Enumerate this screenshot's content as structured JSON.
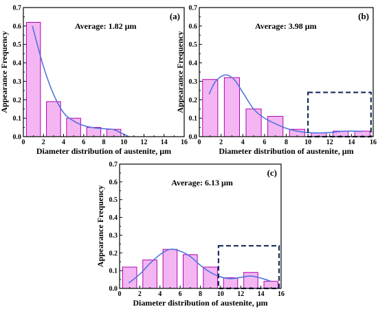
{
  "colors": {
    "bar_fill": "#f4b6f2",
    "bar_stroke": "#b000b0",
    "curve": "#4f73e0",
    "dash_box": "#1a2a5a",
    "axis": "#000000"
  },
  "chart_data": [
    {
      "type": "bar",
      "panel_label": "(a)",
      "annotation": "Average: 1.82 µm",
      "xlabel": "Diameter distribution of austenite, µm",
      "ylabel": "Appearance Frequency",
      "xlim": [
        0,
        16
      ],
      "ylim": [
        0,
        0.7
      ],
      "xticks": [
        "0",
        "2",
        "4",
        "6",
        "8",
        "10",
        "12",
        "14",
        "16"
      ],
      "yticks": [
        "0.0",
        "0.1",
        "0.2",
        "0.3",
        "0.4",
        "0.5",
        "0.6",
        "0.7"
      ],
      "x": [
        1,
        3,
        5,
        7,
        9
      ],
      "values": [
        0.62,
        0.19,
        0.1,
        0.05,
        0.04
      ],
      "bar_width": 1.4,
      "fit_curve": [
        [
          0.9,
          0.6
        ],
        [
          2,
          0.38
        ],
        [
          3,
          0.23
        ],
        [
          4,
          0.13
        ],
        [
          5,
          0.085
        ],
        [
          6,
          0.06
        ],
        [
          7,
          0.048
        ],
        [
          8,
          0.043
        ],
        [
          9,
          0.038
        ],
        [
          9.8,
          0.018
        ],
        [
          10.5,
          0.0
        ]
      ],
      "highlight_box": null
    },
    {
      "type": "bar",
      "panel_label": "(b)",
      "annotation": "Average: 3.98 µm",
      "xlabel": "Diameter distribution of austenite, µm",
      "ylabel": "Appearance Frequency",
      "xlim": [
        0,
        16
      ],
      "ylim": [
        0,
        0.7
      ],
      "xticks": [
        "0",
        "2",
        "4",
        "6",
        "8",
        "10",
        "12",
        "14",
        "16"
      ],
      "yticks": [
        "0.0",
        "0.1",
        "0.2",
        "0.3",
        "0.4",
        "0.5",
        "0.6",
        "0.7"
      ],
      "x": [
        1,
        3,
        5,
        7,
        9,
        11,
        13,
        15
      ],
      "values": [
        0.31,
        0.32,
        0.15,
        0.11,
        0.04,
        0.02,
        0.03,
        0.03
      ],
      "bar_width": 1.4,
      "fit_curve": [
        [
          0.9,
          0.23
        ],
        [
          1.5,
          0.3
        ],
        [
          2.4,
          0.335
        ],
        [
          3.2,
          0.31
        ],
        [
          4,
          0.24
        ],
        [
          5,
          0.15
        ],
        [
          6,
          0.1
        ],
        [
          7,
          0.07
        ],
        [
          8,
          0.045
        ],
        [
          9,
          0.03
        ],
        [
          10,
          0.022
        ],
        [
          11,
          0.02
        ],
        [
          12,
          0.022
        ],
        [
          13,
          0.028
        ],
        [
          14,
          0.03
        ],
        [
          15,
          0.028
        ]
      ],
      "highlight_box": {
        "x": [
          10,
          15.8
        ],
        "y": [
          0,
          0.24
        ]
      }
    },
    {
      "type": "bar",
      "panel_label": "(c)",
      "annotation": "Average: 6.13 µm",
      "xlabel": "Diameter distribution of austenite, µm",
      "ylabel": "Appearance Frequency",
      "xlim": [
        0,
        16
      ],
      "ylim": [
        0,
        0.7
      ],
      "xticks": [
        "0",
        "2",
        "4",
        "6",
        "8",
        "10",
        "12",
        "14",
        "16"
      ],
      "yticks": [
        "0.0",
        "0.1",
        "0.2",
        "0.3",
        "0.4",
        "0.5",
        "0.6",
        "0.7"
      ],
      "x": [
        1,
        3,
        5,
        7,
        9,
        11,
        13,
        15
      ],
      "values": [
        0.12,
        0.16,
        0.22,
        0.19,
        0.12,
        0.06,
        0.09,
        0.04
      ],
      "bar_width": 1.4,
      "fit_curve": [
        [
          0.9,
          0.03
        ],
        [
          2,
          0.08
        ],
        [
          3,
          0.14
        ],
        [
          4,
          0.19
        ],
        [
          5,
          0.22
        ],
        [
          6,
          0.21
        ],
        [
          7,
          0.18
        ],
        [
          8,
          0.13
        ],
        [
          9,
          0.09
        ],
        [
          10,
          0.065
        ],
        [
          11,
          0.055
        ],
        [
          12,
          0.062
        ],
        [
          13,
          0.07
        ],
        [
          14,
          0.058
        ],
        [
          15,
          0.04
        ]
      ],
      "highlight_box": {
        "x": [
          9.8,
          15.8
        ],
        "y": [
          0,
          0.24
        ]
      }
    }
  ]
}
